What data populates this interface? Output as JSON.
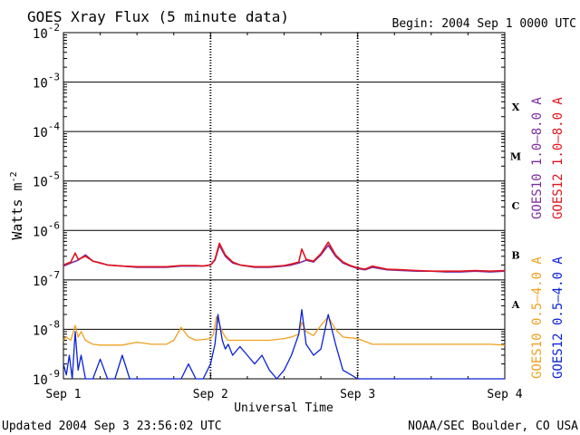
{
  "chart_data": {
    "type": "line",
    "title": "GOES Xray Flux (5 minute data)",
    "begin_label": "Begin:  2004 Sep 1 0000 UTC",
    "ylabel_main": "Watts m",
    "ylabel_sup": "-2",
    "xlabel": "Universal Time",
    "footer_left": "Updated 2004 Sep  3 23:56:02 UTC",
    "footer_right": "NOAA/SEC Boulder, CO USA",
    "y_scale": "log",
    "ylim_exp": [
      -9,
      -2
    ],
    "y_tick_exponents": [
      "-2",
      "-3",
      "-4",
      "-5",
      "-6",
      "-7",
      "-8",
      "-9"
    ],
    "xlim_days": [
      0,
      3
    ],
    "x_ticks": [
      {
        "day": 0,
        "label": "Sep 1"
      },
      {
        "day": 1,
        "label": "Sep 2"
      },
      {
        "day": 2,
        "label": "Sep 3"
      },
      {
        "day": 3,
        "label": "Sep 4"
      }
    ],
    "flare_classes": [
      {
        "label": "X",
        "exp": -3.5
      },
      {
        "label": "M",
        "exp": -4.5
      },
      {
        "label": "C",
        "exp": -5.5
      },
      {
        "label": "B",
        "exp": -6.5
      },
      {
        "label": "A",
        "exp": -7.5
      }
    ],
    "legend": [
      {
        "text": "GOES10 1.0–8.0 A",
        "color": "#7a2ea0",
        "group": "long"
      },
      {
        "text": "GOES12 1.0–8.0 A",
        "color": "#e0141e",
        "group": "long"
      },
      {
        "text": "GOES10 0.5–4.0 A",
        "color": "#f0a020",
        "group": "short"
      },
      {
        "text": "GOES12 0.5–4.0 A",
        "color": "#0a22d8",
        "group": "short"
      }
    ],
    "series": [
      {
        "name": "GOES10 1.0–8.0 A",
        "color": "#7a2ea0",
        "x": [
          0,
          0.05,
          0.1,
          0.15,
          0.2,
          0.25,
          0.3,
          0.4,
          0.5,
          0.6,
          0.7,
          0.8,
          0.9,
          0.95,
          1.0,
          1.03,
          1.06,
          1.1,
          1.15,
          1.2,
          1.3,
          1.4,
          1.5,
          1.55,
          1.6,
          1.65,
          1.7,
          1.75,
          1.8,
          1.85,
          1.9,
          1.95,
          2.0,
          2.05,
          2.1,
          2.2,
          2.3,
          2.4,
          2.5,
          2.6,
          2.7,
          2.8,
          2.9,
          3.0
        ],
        "y": [
          1.9e-07,
          2.2e-07,
          2.5e-07,
          3.2e-07,
          2.4e-07,
          2.2e-07,
          2e-07,
          1.9e-07,
          1.8e-07,
          1.8e-07,
          1.8e-07,
          1.9e-07,
          1.9e-07,
          1.9e-07,
          2e-07,
          2.5e-07,
          5e-07,
          3e-07,
          2.2e-07,
          2e-07,
          1.8e-07,
          1.8e-07,
          1.9e-07,
          2e-07,
          2.2e-07,
          2.5e-07,
          2.3e-07,
          3.2e-07,
          5e-07,
          3e-07,
          2.2e-07,
          1.9e-07,
          1.7e-07,
          1.6e-07,
          1.8e-07,
          1.6e-07,
          1.55e-07,
          1.5e-07,
          1.5e-07,
          1.45e-07,
          1.45e-07,
          1.5e-07,
          1.45e-07,
          1.5e-07
        ]
      },
      {
        "name": "GOES12 1.0–8.0 A",
        "color": "#e0141e",
        "x": [
          0,
          0.05,
          0.08,
          0.1,
          0.15,
          0.2,
          0.25,
          0.3,
          0.4,
          0.5,
          0.6,
          0.7,
          0.8,
          0.9,
          0.95,
          1.0,
          1.03,
          1.06,
          1.1,
          1.15,
          1.2,
          1.3,
          1.4,
          1.5,
          1.55,
          1.6,
          1.62,
          1.65,
          1.7,
          1.75,
          1.8,
          1.85,
          1.9,
          1.95,
          2.0,
          2.05,
          2.1,
          2.2,
          2.3,
          2.4,
          2.5,
          2.6,
          2.7,
          2.8,
          2.9,
          3.0
        ],
        "y": [
          2e-07,
          2.3e-07,
          3.5e-07,
          2.6e-07,
          3e-07,
          2.4e-07,
          2.2e-07,
          2e-07,
          1.9e-07,
          1.85e-07,
          1.85e-07,
          1.85e-07,
          1.95e-07,
          1.95e-07,
          1.9e-07,
          2e-07,
          2.6e-07,
          5.5e-07,
          3.2e-07,
          2.3e-07,
          2e-07,
          1.85e-07,
          1.85e-07,
          1.95e-07,
          2.1e-07,
          2.3e-07,
          4.2e-07,
          2.6e-07,
          2.4e-07,
          3.4e-07,
          5.8e-07,
          3.2e-07,
          2.3e-07,
          1.95e-07,
          1.75e-07,
          1.65e-07,
          1.9e-07,
          1.65e-07,
          1.6e-07,
          1.55e-07,
          1.5e-07,
          1.5e-07,
          1.5e-07,
          1.55e-07,
          1.5e-07,
          1.55e-07
        ]
      },
      {
        "name": "GOES10 0.5–4.0 A",
        "color": "#f0a020",
        "x": [
          0,
          0.02,
          0.05,
          0.08,
          0.1,
          0.12,
          0.15,
          0.2,
          0.25,
          0.3,
          0.4,
          0.5,
          0.6,
          0.7,
          0.75,
          0.8,
          0.85,
          0.9,
          1.0,
          1.02,
          1.04,
          1.08,
          1.1,
          1.12,
          1.2,
          1.3,
          1.4,
          1.5,
          1.55,
          1.6,
          1.62,
          1.65,
          1.7,
          1.75,
          1.8,
          1.85,
          1.9,
          2.0,
          2.1,
          2.2,
          2.3,
          2.5,
          2.7,
          2.9,
          3.0
        ],
        "y": [
          6e-09,
          7e-09,
          6e-09,
          1.2e-08,
          7e-09,
          9e-09,
          6e-09,
          5e-09,
          4.8e-09,
          4.8e-09,
          4.8e-09,
          5.5e-09,
          5e-09,
          5e-09,
          6e-09,
          1.1e-08,
          7e-09,
          6e-09,
          6.5e-09,
          8e-09,
          1.8e-08,
          9e-09,
          7e-09,
          6e-09,
          6e-09,
          6e-09,
          6e-09,
          6.5e-09,
          7e-09,
          8e-09,
          1.4e-08,
          9e-09,
          7.5e-09,
          1.2e-08,
          1.8e-08,
          1e-08,
          7e-09,
          6.5e-09,
          5e-09,
          5e-09,
          5e-09,
          5e-09,
          5e-09,
          5e-09,
          4.8e-09
        ]
      },
      {
        "name": "GOES12 0.5–4.0 A",
        "color": "#0a22d8",
        "x": [
          0,
          0.02,
          0.04,
          0.06,
          0.08,
          0.1,
          0.12,
          0.15,
          0.2,
          0.25,
          0.3,
          0.35,
          0.4,
          0.45,
          0.5,
          0.55,
          0.6,
          0.65,
          0.7,
          0.75,
          0.8,
          0.85,
          0.9,
          0.95,
          1.0,
          1.03,
          1.05,
          1.08,
          1.1,
          1.12,
          1.15,
          1.2,
          1.25,
          1.3,
          1.35,
          1.4,
          1.45,
          1.5,
          1.55,
          1.6,
          1.62,
          1.65,
          1.7,
          1.75,
          1.8,
          1.85,
          1.9,
          2.0,
          2.1,
          2.2,
          2.3,
          2.4,
          2.5,
          2.6,
          2.7,
          2.8,
          2.9,
          3.0
        ],
        "y": [
          2e-09,
          1.2e-09,
          3e-09,
          1e-09,
          9e-09,
          1.5e-09,
          3e-09,
          1e-09,
          1e-09,
          2.5e-09,
          1e-09,
          1e-09,
          3e-09,
          1e-09,
          1e-09,
          1e-09,
          1e-09,
          1e-09,
          1e-09,
          1e-09,
          1e-09,
          2e-09,
          1e-09,
          1e-09,
          2e-09,
          5e-09,
          2e-08,
          6e-09,
          4e-09,
          5e-09,
          3e-09,
          4.5e-09,
          3e-09,
          2e-09,
          3e-09,
          1.5e-09,
          1e-09,
          1.5e-09,
          3e-09,
          8e-09,
          2.5e-08,
          5e-09,
          3e-09,
          4e-09,
          2e-08,
          5e-09,
          1.5e-09,
          1e-09,
          1e-09,
          1e-09,
          1e-09,
          1e-09,
          1e-09,
          1e-09,
          1e-09,
          1e-09,
          1e-09,
          1e-09
        ]
      }
    ]
  }
}
